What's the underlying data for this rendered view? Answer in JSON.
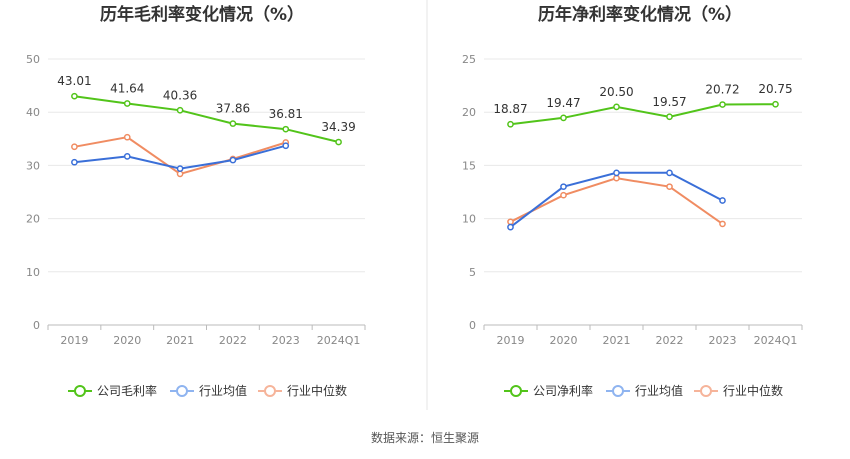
{
  "source": "数据来源：恒生聚源",
  "colors": {
    "company": "#52c41a",
    "industry_avg": "#3a6fd8",
    "industry_median": "#f08c62",
    "legend_avg": "#8fb4f0",
    "legend_median": "#f6b49a",
    "grid": "#e8e8e8",
    "axis": "#bbbbbb",
    "divider": "#e6e6e6"
  },
  "chart_data": [
    {
      "type": "line",
      "title": "历年毛利率变化情况（%）",
      "categories": [
        "2019",
        "2020",
        "2021",
        "2022",
        "2023",
        "2024Q1"
      ],
      "ylim": [
        0,
        50
      ],
      "yticks": [
        0,
        10,
        20,
        30,
        40,
        50
      ],
      "grid": true,
      "legend_position": "bottom",
      "series": [
        {
          "name": "公司毛利率",
          "color_key": "company",
          "labeled": true,
          "values": [
            43.01,
            41.64,
            40.36,
            37.86,
            36.81,
            34.39
          ],
          "labels": [
            "43.01",
            "41.64",
            "40.36",
            "37.86",
            "36.81",
            "34.39"
          ]
        },
        {
          "name": "行业均值",
          "color_key": "industry_avg",
          "labeled": false,
          "values": [
            30.6,
            31.7,
            29.4,
            31.0,
            33.7,
            null
          ]
        },
        {
          "name": "行业中位数",
          "color_key": "industry_median",
          "labeled": false,
          "values": [
            33.5,
            35.3,
            28.4,
            31.2,
            34.3,
            null
          ]
        }
      ]
    },
    {
      "type": "line",
      "title": "历年净利率变化情况（%）",
      "categories": [
        "2019",
        "2020",
        "2021",
        "2022",
        "2023",
        "2024Q1"
      ],
      "ylim": [
        0,
        25
      ],
      "yticks": [
        0,
        5,
        10,
        15,
        20,
        25
      ],
      "grid": true,
      "legend_position": "bottom",
      "series": [
        {
          "name": "公司净利率",
          "color_key": "company",
          "labeled": true,
          "values": [
            18.87,
            19.47,
            20.5,
            19.57,
            20.72,
            20.75
          ],
          "labels": [
            "18.87",
            "19.47",
            "20.50",
            "19.57",
            "20.72",
            "20.75"
          ]
        },
        {
          "name": "行业均值",
          "color_key": "industry_avg",
          "labeled": false,
          "values": [
            9.2,
            13.0,
            14.3,
            14.3,
            11.7,
            null
          ]
        },
        {
          "name": "行业中位数",
          "color_key": "industry_median",
          "labeled": false,
          "values": [
            9.7,
            12.2,
            13.8,
            13.0,
            9.5,
            null
          ]
        }
      ]
    }
  ]
}
